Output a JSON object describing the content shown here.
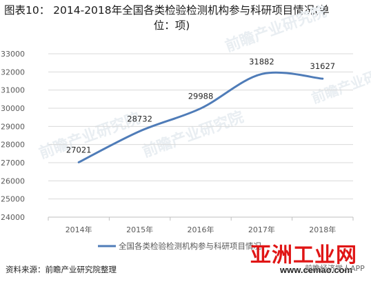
{
  "title_line1": "图表10：  2014-2018年全国各类检验检测机构参与科研项目情况(单",
  "title_line2": "位：项)",
  "source": "资料来源：前瞻产业研究院整理",
  "watermark_brand": "亚洲工业网",
  "watermark_url": "www.cemao.com",
  "watermark_app": "前瞻经济学人APP",
  "watermark_text": "前瞻产业研究院",
  "colors": {
    "line": "#4f7cb8",
    "grid": "#d9d9d9",
    "axis": "#bfbfbf",
    "text": "#595959"
  },
  "chart_data": {
    "type": "line",
    "categories": [
      "2014年",
      "2015年",
      "2016年",
      "2017年",
      "2018年"
    ],
    "series": [
      {
        "name": "全国各类检验检测机构参与科研项目情况",
        "values": [
          27021,
          28732,
          29988,
          31882,
          31627
        ]
      }
    ],
    "data_labels": [
      "27021",
      "28732",
      "29988",
      "31882",
      "31627"
    ],
    "ylim": [
      24000,
      33000
    ],
    "yticks": [
      24000,
      25000,
      26000,
      27000,
      28000,
      29000,
      30000,
      31000,
      32000,
      33000
    ],
    "ytick_labels": [
      "24000",
      "25000",
      "26000",
      "27000",
      "28000",
      "29000",
      "30000",
      "31000",
      "32000",
      "33000"
    ],
    "xlabel": "",
    "ylabel": "",
    "grid": true,
    "legend": "bottom",
    "smooth": true
  }
}
